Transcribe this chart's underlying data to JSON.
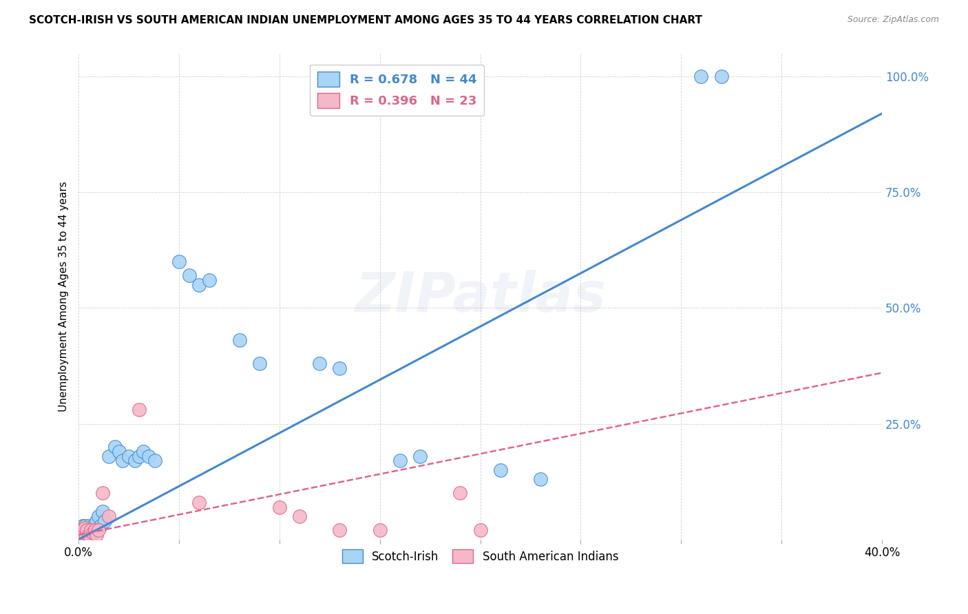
{
  "title": "SCOTCH-IRISH VS SOUTH AMERICAN INDIAN UNEMPLOYMENT AMONG AGES 35 TO 44 YEARS CORRELATION CHART",
  "source": "Source: ZipAtlas.com",
  "ylabel": "Unemployment Among Ages 35 to 44 years",
  "xlim": [
    0.0,
    0.4
  ],
  "ylim": [
    0.0,
    1.05
  ],
  "xtick_positions": [
    0.0,
    0.05,
    0.1,
    0.15,
    0.2,
    0.25,
    0.3,
    0.35,
    0.4
  ],
  "ytick_positions": [
    0.0,
    0.25,
    0.5,
    0.75,
    1.0
  ],
  "ytick_labels": [
    "",
    "25.0%",
    "50.0%",
    "75.0%",
    "100.0%"
  ],
  "blue_scatter_color": "#a8d4f5",
  "blue_line_color": "#4488cc",
  "pink_scatter_color": "#f5b8c8",
  "pink_line_color": "#dd6688",
  "background_color": "#ffffff",
  "watermark": "ZIPatlas",
  "legend_R1": "R = 0.678",
  "legend_N1": "N = 44",
  "legend_R2": "R = 0.396",
  "legend_N2": "N = 23",
  "scotch_irish_x": [
    0.001,
    0.001,
    0.001,
    0.002,
    0.002,
    0.002,
    0.003,
    0.003,
    0.004,
    0.004,
    0.005,
    0.005,
    0.006,
    0.007,
    0.008,
    0.009,
    0.01,
    0.011,
    0.012,
    0.013,
    0.015,
    0.018,
    0.02,
    0.022,
    0.025,
    0.028,
    0.03,
    0.032,
    0.035,
    0.038,
    0.05,
    0.055,
    0.06,
    0.065,
    0.08,
    0.09,
    0.12,
    0.13,
    0.16,
    0.17,
    0.21,
    0.23,
    0.31,
    0.32
  ],
  "scotch_irish_y": [
    0.01,
    0.015,
    0.02,
    0.01,
    0.02,
    0.03,
    0.02,
    0.03,
    0.015,
    0.025,
    0.02,
    0.03,
    0.01,
    0.03,
    0.02,
    0.04,
    0.05,
    0.03,
    0.06,
    0.04,
    0.18,
    0.2,
    0.19,
    0.17,
    0.18,
    0.17,
    0.18,
    0.19,
    0.18,
    0.17,
    0.6,
    0.57,
    0.55,
    0.56,
    0.43,
    0.38,
    0.38,
    0.37,
    0.17,
    0.18,
    0.15,
    0.13,
    1.0,
    1.0
  ],
  "south_american_x": [
    0.001,
    0.001,
    0.002,
    0.002,
    0.003,
    0.003,
    0.004,
    0.005,
    0.006,
    0.007,
    0.008,
    0.009,
    0.01,
    0.012,
    0.015,
    0.03,
    0.06,
    0.1,
    0.11,
    0.13,
    0.15,
    0.19,
    0.2
  ],
  "south_american_y": [
    0.01,
    0.02,
    0.01,
    0.02,
    0.015,
    0.025,
    0.02,
    0.01,
    0.02,
    0.015,
    0.02,
    0.01,
    0.02,
    0.1,
    0.05,
    0.28,
    0.08,
    0.07,
    0.05,
    0.02,
    0.02,
    0.1,
    0.02
  ],
  "blue_line_x": [
    0.0,
    0.4
  ],
  "blue_line_y": [
    0.0,
    0.92
  ],
  "pink_line_x": [
    0.0,
    0.4
  ],
  "pink_line_y": [
    0.01,
    0.36
  ]
}
